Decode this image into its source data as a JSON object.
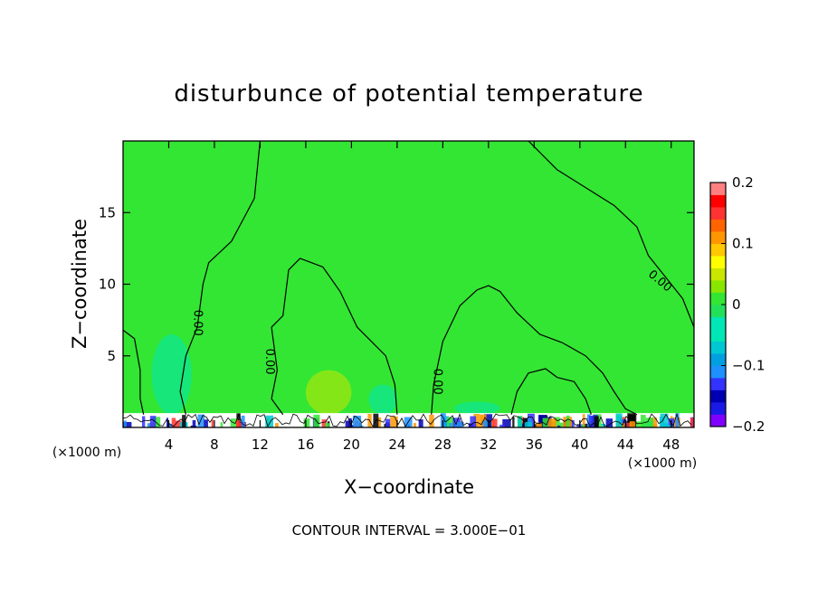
{
  "chart_data": {
    "type": "heatmap",
    "title": "disturbunce of potential temperature",
    "xlabel": "X−coordinate",
    "ylabel": "Z−coordinate",
    "x_unit": "(×1000 m)",
    "y_unit": "(×1000 m)",
    "xlim": [
      0,
      50
    ],
    "ylim": [
      0,
      20
    ],
    "x_ticks": [
      4,
      8,
      12,
      16,
      20,
      24,
      28,
      32,
      36,
      40,
      44,
      48
    ],
    "y_ticks": [
      5,
      10,
      15
    ],
    "contour_interval_text": "CONTOUR INTERVAL = 3.000E−01",
    "contour_labels": [
      {
        "text": "0.00",
        "x": 6.5,
        "y": 7.3
      },
      {
        "text": "0.00",
        "x": 12.8,
        "y": 4.6
      },
      {
        "text": "0.00",
        "x": 27.5,
        "y": 3.2
      },
      {
        "text": "0.00",
        "x": 47.0,
        "y": 10.2
      }
    ],
    "contour_lines": [
      {
        "level": 0.0,
        "points": [
          [
            12.0,
            20.0
          ],
          [
            11.5,
            16.0
          ],
          [
            9.5,
            13.0
          ],
          [
            7.5,
            11.5
          ],
          [
            7.0,
            10.0
          ],
          [
            6.5,
            7.0
          ],
          [
            5.5,
            5.0
          ],
          [
            5.0,
            2.5
          ],
          [
            5.5,
            0.9
          ]
        ]
      },
      {
        "level": 0.0,
        "points": [
          [
            14.0,
            0.9
          ],
          [
            13.0,
            2.0
          ],
          [
            13.5,
            4.0
          ],
          [
            13.0,
            7.0
          ],
          [
            14.0,
            7.8
          ],
          [
            14.5,
            11.0
          ],
          [
            15.5,
            11.8
          ],
          [
            17.5,
            11.2
          ],
          [
            19.0,
            9.5
          ],
          [
            20.5,
            7.0
          ],
          [
            22.0,
            5.8
          ],
          [
            23.0,
            5.0
          ],
          [
            23.8,
            3.0
          ],
          [
            24.0,
            0.9
          ]
        ]
      },
      {
        "level": 0.0,
        "points": [
          [
            27.0,
            0.9
          ],
          [
            27.2,
            3.0
          ],
          [
            28.0,
            6.0
          ],
          [
            29.5,
            8.5
          ],
          [
            31.0,
            9.6
          ],
          [
            32.0,
            9.9
          ],
          [
            33.0,
            9.5
          ],
          [
            34.5,
            8.0
          ],
          [
            36.5,
            6.5
          ],
          [
            38.5,
            5.9
          ],
          [
            40.5,
            5.0
          ],
          [
            42.0,
            3.8
          ],
          [
            43.0,
            2.5
          ],
          [
            44.0,
            1.3
          ],
          [
            45.0,
            0.9
          ]
        ]
      },
      {
        "level": 0.0,
        "points": [
          [
            34.0,
            0.9
          ],
          [
            34.5,
            2.5
          ],
          [
            35.5,
            3.8
          ],
          [
            37.0,
            4.1
          ],
          [
            38.0,
            3.5
          ],
          [
            39.5,
            3.2
          ],
          [
            40.5,
            2.0
          ],
          [
            41.0,
            0.9
          ]
        ]
      },
      {
        "level": 0.0,
        "points": [
          [
            0.0,
            6.8
          ],
          [
            1.0,
            6.2
          ],
          [
            1.5,
            4.0
          ],
          [
            1.5,
            2.0
          ],
          [
            1.8,
            0.9
          ]
        ]
      },
      {
        "level": 0.0,
        "points": [
          [
            35.5,
            20.0
          ],
          [
            38.0,
            18.0
          ],
          [
            41.0,
            16.5
          ],
          [
            43.0,
            15.5
          ],
          [
            45.0,
            14.0
          ],
          [
            46.0,
            12.0
          ],
          [
            48.0,
            10.0
          ],
          [
            49.0,
            9.0
          ],
          [
            50.0,
            7.0
          ]
        ]
      }
    ],
    "colorbar": {
      "min": -0.2,
      "max": 0.2,
      "tick_labels": [
        "0.2",
        "0.1",
        "0",
        "−0.1",
        "−0.2"
      ],
      "tick_values": [
        0.2,
        0.1,
        0.0,
        -0.1,
        -0.2
      ],
      "colors": [
        "#7f00ff",
        "#1a1ae6",
        "#0000b3",
        "#3333ff",
        "#1e90ff",
        "#00a0e0",
        "#00c8d2",
        "#00e6b4",
        "#00e6b4",
        "#22e05a",
        "#33e633",
        "#88e600",
        "#c8e600",
        "#ffff00",
        "#ffc800",
        "#ff9600",
        "#ff6400",
        "#ff3232",
        "#ff0000",
        "#ff8080"
      ]
    },
    "field_color": "#33e633",
    "regions": [
      {
        "x0": 0.5,
        "x1": 2.5,
        "y0": 0.9,
        "y1": 6.0,
        "value": 0.02
      },
      {
        "x0": 2.5,
        "x1": 6.0,
        "y0": 0.9,
        "y1": 6.5,
        "value": -0.04
      },
      {
        "x0": 16.0,
        "x1": 20.0,
        "y0": 0.9,
        "y1": 4.0,
        "value": 0.05
      },
      {
        "x0": 21.5,
        "x1": 24.0,
        "y0": 0.9,
        "y1": 3.0,
        "value": -0.03
      },
      {
        "x0": 29.0,
        "x1": 33.0,
        "y0": 0.9,
        "y1": 1.8,
        "value": -0.03
      }
    ],
    "boundary_layer_top": 1.0
  }
}
